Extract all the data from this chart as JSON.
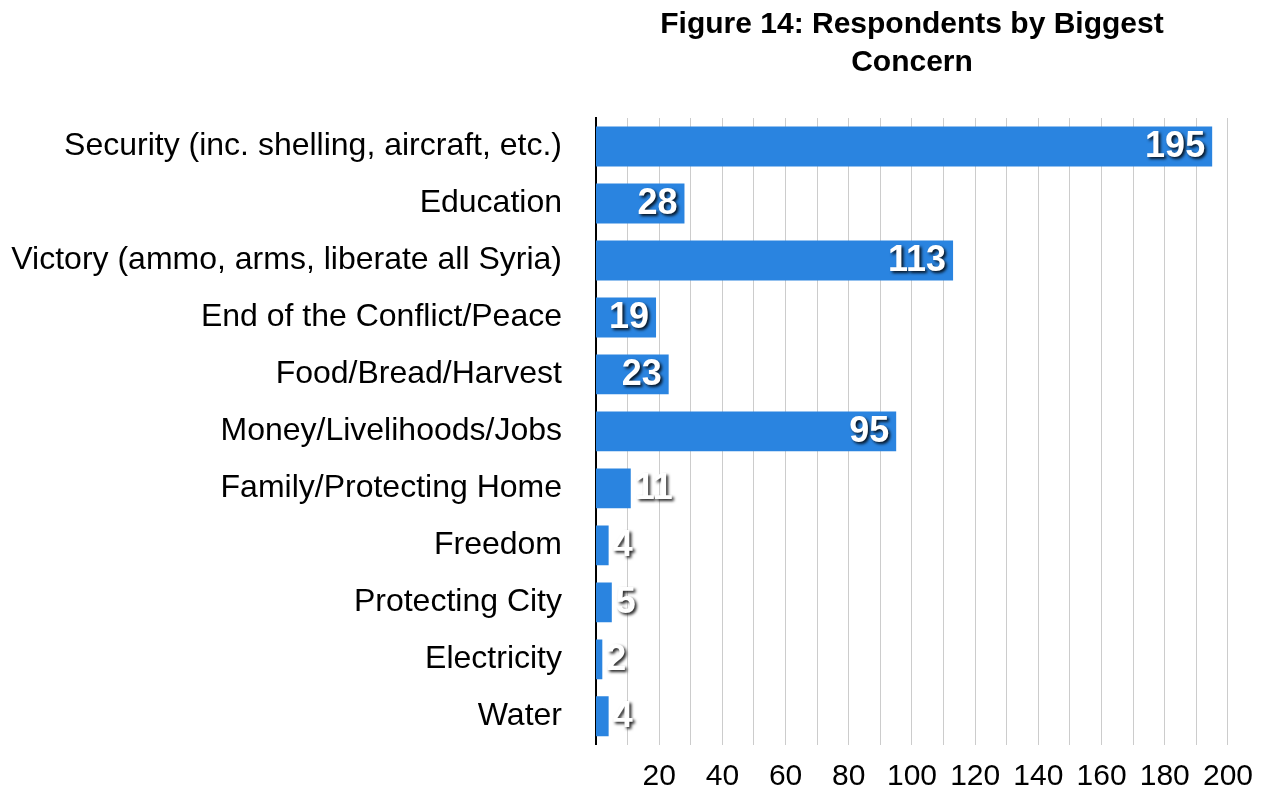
{
  "chart_data": {
    "type": "bar",
    "orientation": "horizontal",
    "title": "Figure 14: Respondents by Biggest Concern",
    "categories": [
      "Security (inc. shelling, aircraft, etc.)",
      "Education",
      "Victory (ammo, arms, liberate all Syria)",
      "End of the Conflict/Peace",
      "Food/Bread/Harvest",
      "Money/Livelihoods/Jobs",
      "Family/Protecting Home",
      "Freedom",
      "Protecting City",
      "Electricity",
      "Water"
    ],
    "values": [
      195,
      28,
      113,
      19,
      23,
      95,
      11,
      4,
      5,
      2,
      4
    ],
    "color": "#2a84e0",
    "xlim": [
      0,
      200
    ],
    "xticks": [
      {
        "value": 10,
        "label": null
      },
      20,
      {
        "value": 30,
        "label": null
      },
      40,
      {
        "value": 50,
        "label": null
      },
      60,
      {
        "value": 70,
        "label": null
      },
      80,
      {
        "value": 90,
        "label": null
      },
      100,
      {
        "value": 110,
        "label": null
      },
      120,
      {
        "value": 130,
        "label": null
      },
      140,
      {
        "value": 150,
        "label": null
      },
      160,
      {
        "value": 170,
        "label": null
      },
      180,
      {
        "value": 190,
        "label": null
      },
      200
    ],
    "grid": "x",
    "data_labels": true
  }
}
